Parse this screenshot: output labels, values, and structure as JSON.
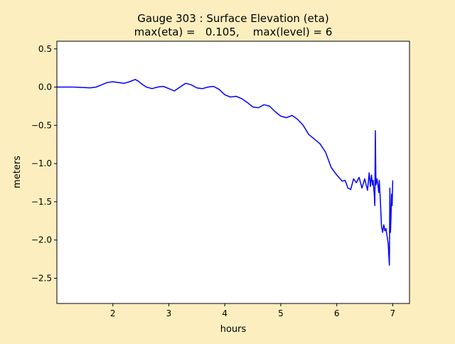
{
  "chart_data": {
    "type": "line",
    "title": "Gauge 303 : Surface Elevation (eta)",
    "subtitle": "max(eta) =   0.105,    max(level) = 6",
    "xlabel": "hours",
    "ylabel": "meters",
    "xlim": [
      1.0,
      7.3
    ],
    "ylim": [
      -2.83,
      0.6
    ],
    "xticks": [
      2,
      3,
      4,
      5,
      6,
      7
    ],
    "yticks": [
      -2.5,
      -2.0,
      -1.5,
      -1.0,
      -0.5,
      0.0,
      0.5
    ],
    "grid": false,
    "line_color": "#0000ff",
    "series": [
      {
        "name": "",
        "x": [
          1.0,
          1.3,
          1.6,
          1.7,
          1.8,
          1.9,
          2.0,
          2.1,
          2.2,
          2.3,
          2.4,
          2.45,
          2.5,
          2.6,
          2.7,
          2.8,
          2.9,
          3.0,
          3.1,
          3.2,
          3.3,
          3.4,
          3.5,
          3.6,
          3.7,
          3.8,
          3.9,
          4.0,
          4.1,
          4.2,
          4.3,
          4.4,
          4.5,
          4.6,
          4.7,
          4.8,
          4.9,
          5.0,
          5.1,
          5.2,
          5.3,
          5.4,
          5.5,
          5.6,
          5.7,
          5.8,
          5.9,
          6.0,
          6.1,
          6.15,
          6.2,
          6.25,
          6.3,
          6.35,
          6.4,
          6.45,
          6.5,
          6.55,
          6.58,
          6.6,
          6.62,
          6.64,
          6.65,
          6.67,
          6.68,
          6.69,
          6.7,
          6.72,
          6.74,
          6.75,
          6.76,
          6.78,
          6.8,
          6.82,
          6.84,
          6.86,
          6.88,
          6.9,
          6.92,
          6.93,
          6.94,
          6.95,
          6.96,
          6.97,
          6.98,
          6.99,
          7.0
        ],
        "y": [
          0.0,
          0.0,
          -0.01,
          0.0,
          0.03,
          0.06,
          0.07,
          0.06,
          0.05,
          0.07,
          0.1,
          0.08,
          0.05,
          0.0,
          -0.02,
          0.0,
          0.01,
          -0.02,
          -0.05,
          0.0,
          0.05,
          0.03,
          -0.01,
          -0.02,
          0.0,
          0.01,
          -0.03,
          -0.1,
          -0.13,
          -0.12,
          -0.15,
          -0.2,
          -0.26,
          -0.27,
          -0.23,
          -0.25,
          -0.32,
          -0.38,
          -0.4,
          -0.37,
          -0.42,
          -0.5,
          -0.62,
          -0.68,
          -0.74,
          -0.85,
          -1.05,
          -1.15,
          -1.23,
          -1.22,
          -1.32,
          -1.34,
          -1.2,
          -1.25,
          -1.18,
          -1.32,
          -1.2,
          -1.35,
          -1.12,
          -1.3,
          -1.15,
          -1.28,
          -1.22,
          -1.4,
          -1.55,
          -0.57,
          -1.28,
          -1.2,
          -1.3,
          -1.38,
          -1.22,
          -1.5,
          -1.82,
          -1.9,
          -1.8,
          -1.88,
          -1.85,
          -1.95,
          -2.05,
          -2.2,
          -2.33,
          -1.32,
          -1.9,
          -1.7,
          -1.4,
          -1.55,
          -1.22
        ]
      }
    ]
  }
}
